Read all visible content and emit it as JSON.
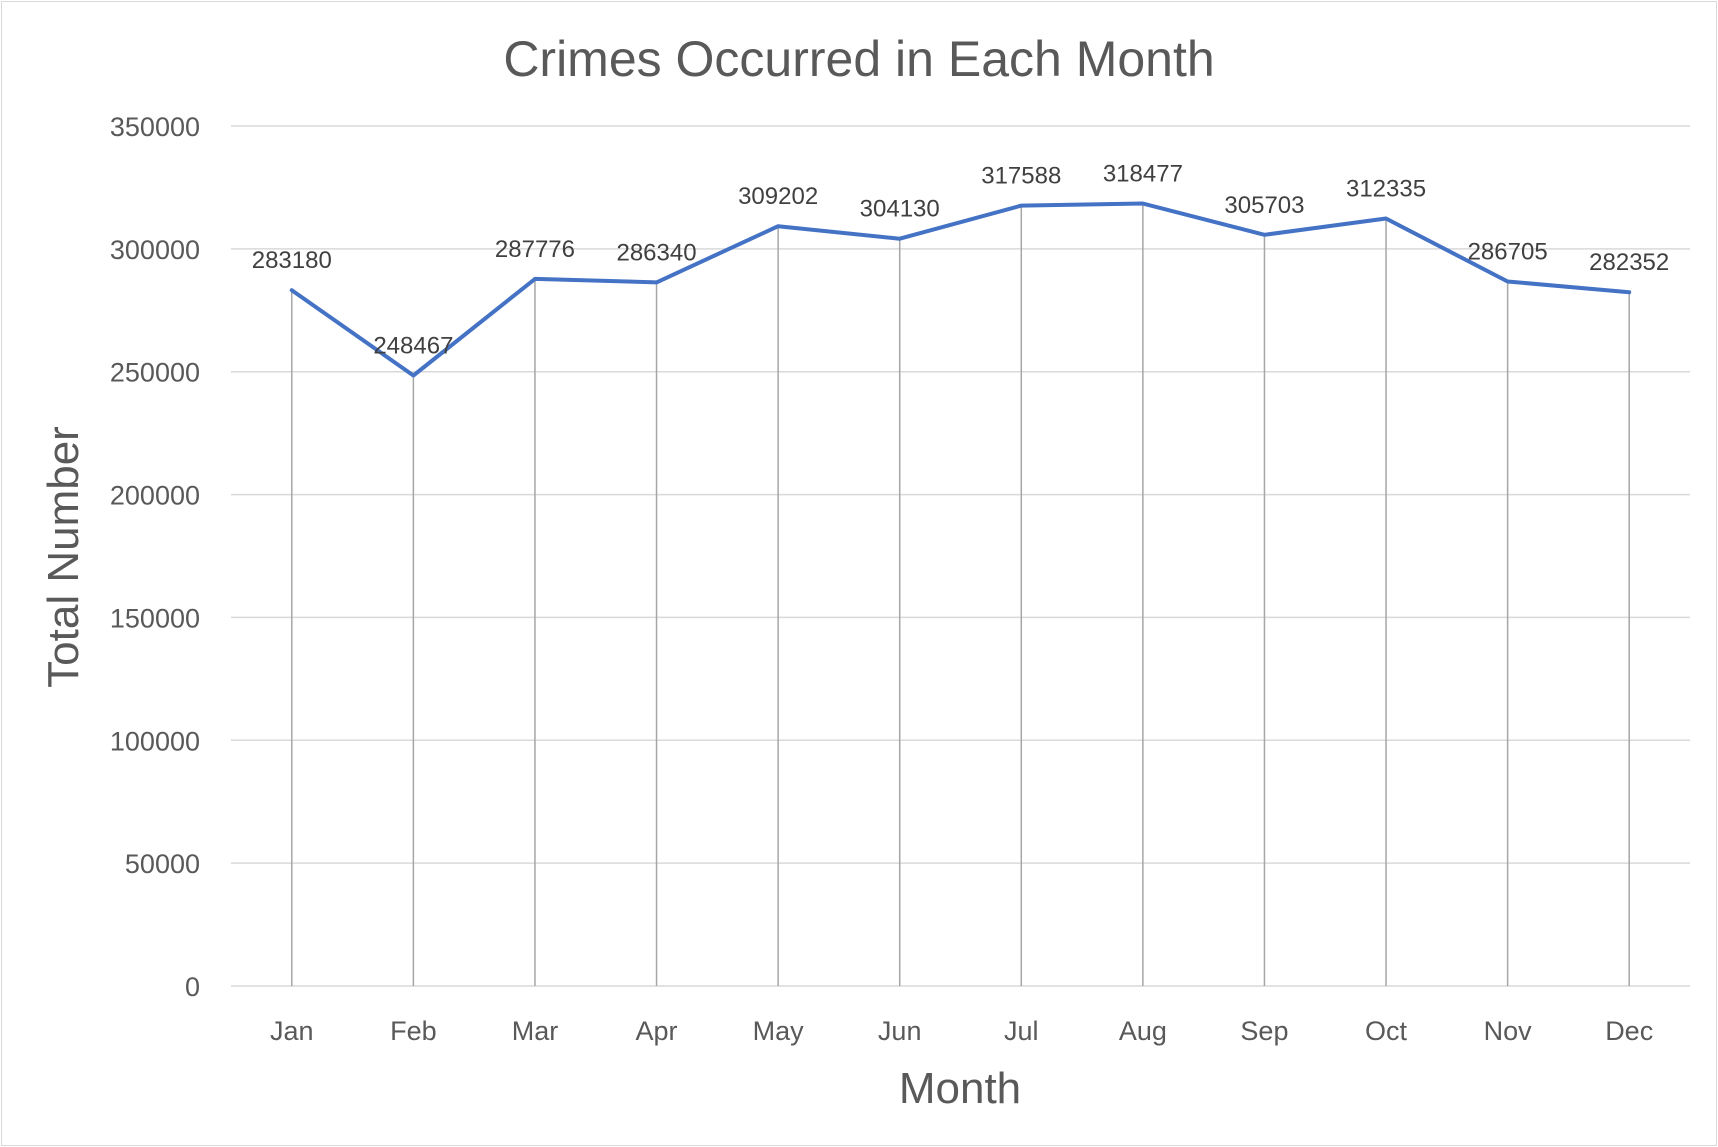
{
  "chart_data": {
    "type": "line",
    "title": "Crimes Occurred in Each Month",
    "xlabel": "Month",
    "ylabel": "Total Number",
    "categories": [
      "Jan",
      "Feb",
      "Mar",
      "Apr",
      "May",
      "Jun",
      "Jul",
      "Aug",
      "Sep",
      "Oct",
      "Nov",
      "Dec"
    ],
    "series": [
      {
        "values": [
          283180,
          248467,
          287776,
          286340,
          309202,
          304130,
          317588,
          318477,
          305703,
          312335,
          286705,
          282352
        ]
      }
    ],
    "ylim": [
      0,
      350000
    ],
    "yticks": [
      0,
      50000,
      100000,
      150000,
      200000,
      250000,
      300000,
      350000
    ],
    "grid": true,
    "drop_lines": true,
    "data_labels": true,
    "legend": "none",
    "colors": {
      "line": "#4472c4",
      "grid": "#d9d9d9",
      "drop_line": "#a6a6a6",
      "text": "#595959"
    }
  }
}
